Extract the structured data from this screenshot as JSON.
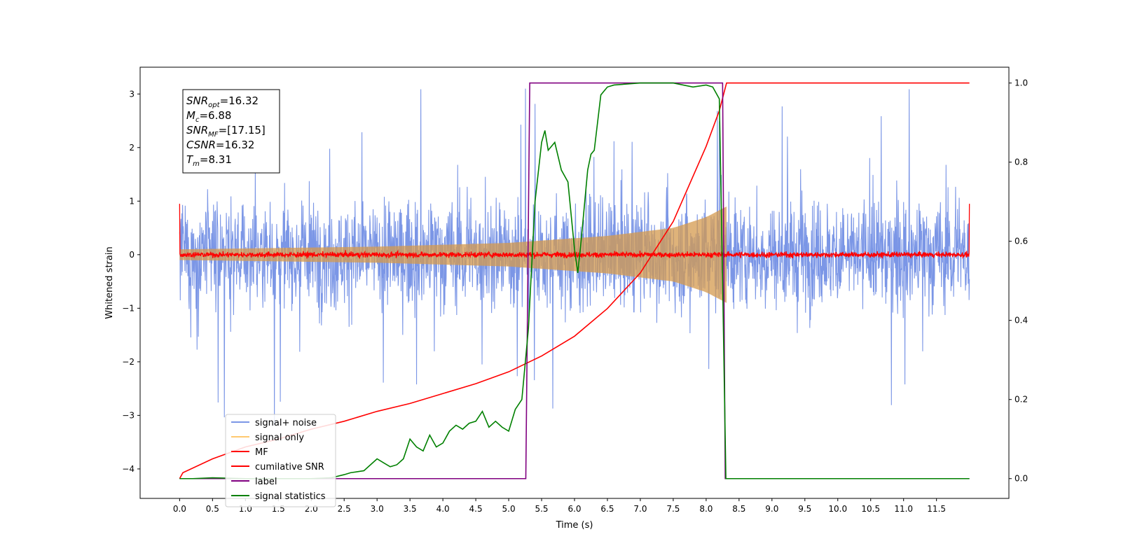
{
  "chart_data": {
    "type": "line",
    "xlabel": "Time (s)",
    "ylabel": "Whitened strain",
    "xlim": [
      -0.6,
      12.6
    ],
    "ylim": [
      -4.55,
      3.5
    ],
    "y2lim": [
      -0.05,
      1.04
    ],
    "x_ticks": [
      0.0,
      0.5,
      1.0,
      1.5,
      2.0,
      2.5,
      3.0,
      3.5,
      4.0,
      4.5,
      5.0,
      5.5,
      6.0,
      6.5,
      7.0,
      7.5,
      8.0,
      8.5,
      9.0,
      9.5,
      10.0,
      10.5,
      11.0,
      11.5
    ],
    "x_tick_labels": [
      "0.0",
      "0.5",
      "1.0",
      "1.5",
      "2.0",
      "2.5",
      "3.0",
      "3.5",
      "4.0",
      "4.5",
      "5.0",
      "5.5",
      "6.0",
      "6.5",
      "7.0",
      "7.5",
      "8.0",
      "8.5",
      "9.0",
      "9.5",
      "10.0",
      "10.5",
      "11.0",
      "11.5"
    ],
    "y_ticks": [
      3,
      2,
      1,
      0,
      -1,
      -2,
      -3,
      -4
    ],
    "y_tick_labels": [
      "3",
      "2",
      "1",
      "0",
      "−1",
      "−2",
      "−3",
      "−4"
    ],
    "y2_ticks": [
      1.0,
      0.8,
      0.6,
      0.4,
      0.2,
      0.0
    ],
    "y2_tick_labels": [
      "1.0",
      "0.8",
      "0.6",
      "0.4",
      "0.2",
      "0.0"
    ],
    "grid": false,
    "legend_position": "lower-left",
    "annotation": {
      "lines": [
        {
          "main": "SNR",
          "sub": "opt",
          "rest": "=16.32"
        },
        {
          "main": "M",
          "sub": "c",
          "rest": "=6.88"
        },
        {
          "main": "SNR",
          "sub": "MF",
          "rest": "=[17.15]"
        },
        {
          "main": "CSNR",
          "sub": "",
          "rest": "=16.32"
        },
        {
          "main": "T",
          "sub": "m",
          "rest": "=8.31"
        }
      ]
    },
    "series": [
      {
        "name": "signal+ noise",
        "color": "#7b96e6",
        "axis": "left",
        "kind": "noise",
        "x_range": [
          0.0,
          12.0
        ],
        "typical_range": [
          -1.6,
          1.6
        ],
        "peak_range": [
          -4.15,
          3.1
        ]
      },
      {
        "name": "signal only",
        "color": "#ffc970",
        "axis": "left",
        "kind": "chirp_envelope",
        "x_range": [
          0.0,
          8.31
        ],
        "envelope_x": [
          0.0,
          3.0,
          5.0,
          6.5,
          7.5,
          8.0,
          8.31
        ],
        "envelope_amp": [
          0.1,
          0.15,
          0.22,
          0.35,
          0.5,
          0.7,
          0.9
        ]
      },
      {
        "name": "MF",
        "color": "#ff0000",
        "axis": "left",
        "kind": "noise_small",
        "x_range": [
          0.0,
          12.0
        ],
        "typical_range": [
          -0.08,
          0.08
        ],
        "edge_value": 0.95
      },
      {
        "name": "cumilative SNR",
        "color": "#ff0000",
        "axis": "right",
        "x": [
          0.0,
          0.05,
          0.5,
          1.0,
          1.5,
          2.0,
          2.5,
          3.0,
          3.5,
          4.0,
          4.5,
          5.0,
          5.5,
          6.0,
          6.5,
          7.0,
          7.5,
          8.0,
          8.2,
          8.31,
          12.0
        ],
        "values": [
          0.0,
          0.015,
          0.05,
          0.08,
          0.1,
          0.125,
          0.145,
          0.17,
          0.19,
          0.215,
          0.24,
          0.27,
          0.31,
          0.36,
          0.43,
          0.52,
          0.65,
          0.84,
          0.93,
          1.0,
          1.0
        ]
      },
      {
        "name": "label",
        "color": "#800080",
        "axis": "right",
        "x": [
          0.0,
          5.26,
          5.32,
          8.25,
          8.29,
          12.0
        ],
        "values": [
          0.0,
          0.0,
          1.0,
          1.0,
          0.0,
          0.0
        ]
      },
      {
        "name": "signal statistics",
        "color": "#008000",
        "axis": "right",
        "x": [
          0.0,
          0.2,
          0.5,
          1.0,
          1.5,
          2.0,
          2.3,
          2.5,
          2.6,
          2.8,
          3.0,
          3.1,
          3.2,
          3.3,
          3.4,
          3.5,
          3.6,
          3.7,
          3.8,
          3.9,
          4.0,
          4.1,
          4.2,
          4.3,
          4.4,
          4.5,
          4.6,
          4.7,
          4.8,
          4.9,
          5.0,
          5.1,
          5.2,
          5.3,
          5.4,
          5.5,
          5.55,
          5.6,
          5.7,
          5.8,
          5.9,
          6.0,
          6.05,
          6.1,
          6.2,
          6.25,
          6.3,
          6.4,
          6.5,
          6.6,
          7.0,
          7.5,
          7.8,
          8.0,
          8.1,
          8.2,
          8.25,
          8.3,
          8.35,
          12.0
        ],
        "values": [
          0.0,
          0.0,
          0.002,
          0.0,
          0.0,
          0.0,
          0.002,
          0.01,
          0.015,
          0.02,
          0.05,
          0.04,
          0.03,
          0.035,
          0.05,
          0.1,
          0.08,
          0.07,
          0.11,
          0.08,
          0.09,
          0.12,
          0.135,
          0.125,
          0.14,
          0.145,
          0.17,
          0.13,
          0.145,
          0.13,
          0.12,
          0.175,
          0.2,
          0.38,
          0.7,
          0.85,
          0.88,
          0.83,
          0.85,
          0.78,
          0.75,
          0.58,
          0.52,
          0.6,
          0.78,
          0.82,
          0.83,
          0.97,
          0.99,
          0.995,
          1.0,
          1.0,
          0.99,
          0.995,
          0.99,
          0.96,
          0.5,
          0.0,
          0.0,
          0.0
        ]
      }
    ]
  }
}
